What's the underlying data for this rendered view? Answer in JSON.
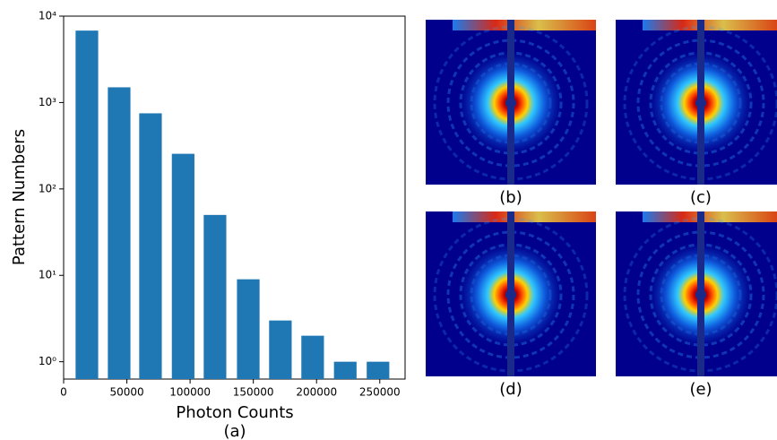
{
  "chart_data": {
    "type": "bar",
    "xlabel": "Photon Counts",
    "ylabel": "Pattern Numbers",
    "caption": "(a)",
    "x": [
      18400,
      43900,
      68700,
      94500,
      119700,
      146000,
      171400,
      196900,
      222700,
      248600
    ],
    "values": [
      6800,
      1500,
      750,
      255,
      50,
      9,
      3,
      2,
      1,
      1
    ],
    "color": "#1f77b4",
    "log_y": true,
    "xlim": [
      0,
      270000
    ],
    "xticks": [
      0,
      50000,
      100000,
      150000,
      200000,
      250000
    ],
    "ylim": [
      0.63,
      10000
    ],
    "yticks": [
      {
        "value": 1,
        "label": "10⁰"
      },
      {
        "value": 10,
        "label": "10¹"
      },
      {
        "value": 100,
        "label": "10²"
      },
      {
        "value": 1000,
        "label": "10³"
      },
      {
        "value": 10000,
        "label": "10⁴"
      }
    ]
  },
  "panels": [
    "(b)",
    "(c)",
    "(d)",
    "(e)"
  ]
}
